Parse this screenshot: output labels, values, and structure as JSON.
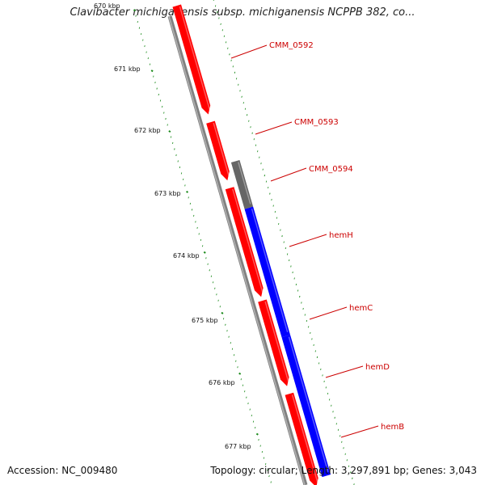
{
  "title": "Clavibacter michiganensis subsp. michiganensis NCPPB 382, co...",
  "ruler": {
    "ticks": [
      "670 kbp",
      "671 kbp",
      "672 kbp",
      "673 kbp",
      "674 kbp",
      "675 kbp",
      "676 kbp",
      "677 kbp"
    ]
  },
  "genes": [
    {
      "label": "CMM_0592",
      "strand": "reverse",
      "color": "#ff0000"
    },
    {
      "label": "CMM_0593",
      "strand": "reverse",
      "color": "#ff0000"
    },
    {
      "label": "CMM_0594",
      "strand": "forward",
      "color": "#666666"
    },
    {
      "label": "hemH",
      "strand": "forward",
      "color": "#0000ff"
    },
    {
      "label": "hemC",
      "strand": "reverse",
      "color": "#ff0000"
    },
    {
      "label": "hemD",
      "strand": "forward",
      "color": "#0000ff"
    },
    {
      "label": "hemB",
      "strand": "reverse",
      "color": "#ff0000"
    }
  ],
  "colors": {
    "backbone": "#808080",
    "tick": "#1a8a1a",
    "label": "#cc0000"
  },
  "footer": {
    "accession": "Accession: NC_009480",
    "summary": "Topology: circular; Length: 3,297,891 bp; Genes: 3,043"
  }
}
